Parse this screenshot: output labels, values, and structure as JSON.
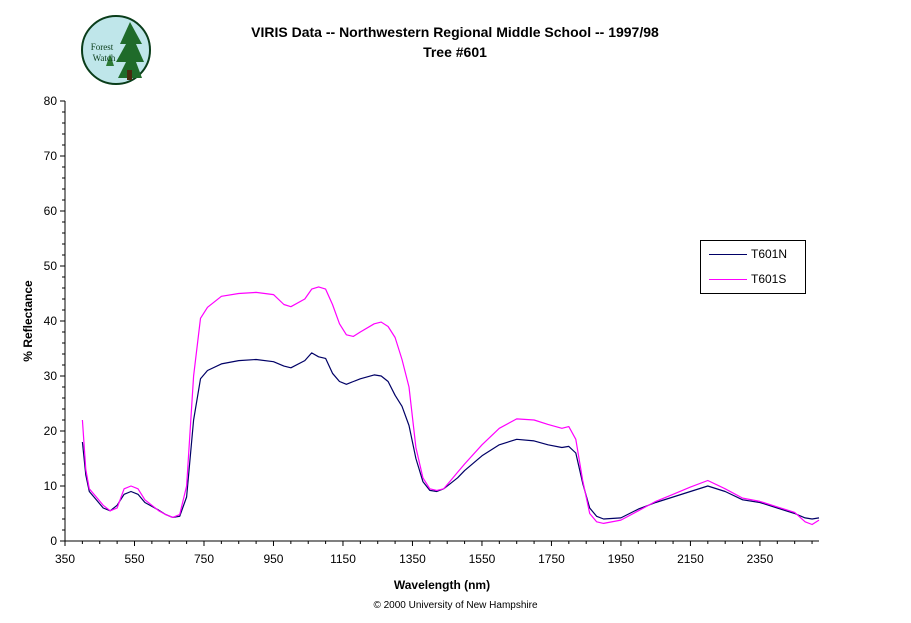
{
  "header": {
    "title_line1": "VIRIS Data -- Northwestern Regional Middle School -- 1997/98",
    "title_line2": "Tree #601",
    "logo_text": [
      "Forest",
      "Watch"
    ]
  },
  "footer": {
    "copyright": "© 2000 University of New Hampshire"
  },
  "chart_data": {
    "type": "line",
    "title": "VIRIS Data -- Northwestern Regional Middle School -- 1997/98",
    "subtitle": "Tree #601",
    "xlabel": "Wavelength (nm)",
    "ylabel": "% Reflectance",
    "xlim": [
      350,
      2520
    ],
    "ylim": [
      0,
      80
    ],
    "xticks": [
      350,
      550,
      750,
      950,
      1150,
      1350,
      1550,
      1750,
      1950,
      2150,
      2350
    ],
    "yticks": [
      0,
      10,
      20,
      30,
      40,
      50,
      60,
      70,
      80
    ],
    "grid": false,
    "legend": "right",
    "series": [
      {
        "name": "T601N",
        "color": "#000066",
        "x": [
          400,
          410,
          420,
          440,
          460,
          480,
          500,
          520,
          540,
          560,
          580,
          600,
          620,
          640,
          660,
          680,
          700,
          720,
          740,
          760,
          800,
          850,
          900,
          950,
          980,
          1000,
          1040,
          1060,
          1080,
          1100,
          1120,
          1140,
          1160,
          1180,
          1200,
          1240,
          1260,
          1280,
          1300,
          1320,
          1340,
          1360,
          1380,
          1400,
          1420,
          1440,
          1460,
          1480,
          1500,
          1550,
          1600,
          1650,
          1700,
          1740,
          1780,
          1800,
          1820,
          1840,
          1860,
          1880,
          1900,
          1950,
          2000,
          2050,
          2100,
          2150,
          2200,
          2250,
          2300,
          2350,
          2400,
          2450,
          2480,
          2500,
          2520
        ],
        "y": [
          18,
          12,
          9,
          7.5,
          6,
          5.5,
          6.5,
          8.5,
          9,
          8.5,
          7,
          6.3,
          5.6,
          4.8,
          4.3,
          4.5,
          8,
          22,
          29.5,
          31,
          32.2,
          32.8,
          33,
          32.6,
          31.8,
          31.5,
          32.8,
          34.2,
          33.5,
          33.2,
          30.5,
          29,
          28.5,
          29,
          29.5,
          30.2,
          30,
          29,
          26.5,
          24.5,
          21,
          15,
          10.8,
          9.2,
          9,
          9.5,
          10.5,
          11.5,
          12.8,
          15.5,
          17.5,
          18.5,
          18.2,
          17.5,
          17,
          17.2,
          16,
          10.5,
          6,
          4.5,
          4,
          4.2,
          5.8,
          7,
          8,
          9,
          10,
          9,
          7.5,
          7,
          6,
          5,
          4.2,
          4,
          4.2
        ]
      },
      {
        "name": "T601S",
        "color": "#ff00ff",
        "x": [
          400,
          410,
          420,
          440,
          460,
          480,
          500,
          520,
          540,
          560,
          580,
          600,
          620,
          640,
          660,
          680,
          700,
          720,
          740,
          760,
          800,
          850,
          900,
          950,
          980,
          1000,
          1040,
          1060,
          1080,
          1100,
          1120,
          1140,
          1160,
          1180,
          1200,
          1240,
          1260,
          1280,
          1300,
          1320,
          1340,
          1360,
          1380,
          1400,
          1420,
          1440,
          1460,
          1480,
          1500,
          1550,
          1600,
          1650,
          1700,
          1740,
          1780,
          1800,
          1820,
          1840,
          1860,
          1880,
          1900,
          1950,
          2000,
          2050,
          2100,
          2150,
          2200,
          2250,
          2300,
          2350,
          2400,
          2450,
          2480,
          2500,
          2520
        ],
        "y": [
          22,
          13,
          9.5,
          8,
          6.5,
          5.5,
          6,
          9.5,
          10,
          9.5,
          7.5,
          6.5,
          5.5,
          4.8,
          4.3,
          4.8,
          10,
          30,
          40.5,
          42.5,
          44.5,
          45,
          45.2,
          44.8,
          43,
          42.6,
          44,
          45.8,
          46.2,
          45.8,
          43,
          39.5,
          37.5,
          37.2,
          38,
          39.5,
          39.8,
          39,
          37,
          33,
          28,
          17,
          11.5,
          9.5,
          9.2,
          9.5,
          11,
          12.5,
          14,
          17.5,
          20.5,
          22.2,
          22,
          21.2,
          20.5,
          20.8,
          18.5,
          11,
          5,
          3.5,
          3.2,
          3.8,
          5.5,
          7.2,
          8.5,
          9.8,
          11,
          9.5,
          7.8,
          7.2,
          6.2,
          5.2,
          3.5,
          3,
          3.8
        ]
      }
    ]
  }
}
